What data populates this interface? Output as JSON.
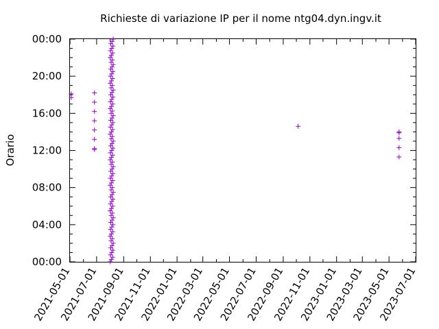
{
  "chart_data": {
    "type": "scatter",
    "title": "Richieste di variazione IP per il nome ntg04.dyn.ingv.it",
    "xlabel": "",
    "ylabel": "Orario",
    "x_ticks": [
      "2021-05-01",
      "2021-07-01",
      "2021-09-01",
      "2021-11-01",
      "2022-01-01",
      "2022-03-01",
      "2022-05-01",
      "2022-07-01",
      "2022-09-01",
      "2022-11-01",
      "2023-01-01",
      "2023-03-01",
      "2023-05-01",
      "2023-07-01"
    ],
    "y_ticks": [
      "00:00",
      "04:00",
      "08:00",
      "12:00",
      "16:00",
      "20:00",
      "00:00"
    ],
    "xlim": [
      "2021-05-01",
      "2023-07-01"
    ],
    "ylim": [
      0,
      24
    ],
    "grid": false,
    "marker_color": "#9400d3",
    "series": [
      {
        "points": [
          [
            "2021-05-04",
            17.7
          ],
          [
            "2021-05-04",
            18.1
          ],
          [
            "2021-06-26",
            12.1
          ],
          [
            "2021-06-26",
            12.2
          ],
          [
            "2021-06-26",
            13.2
          ],
          [
            "2021-06-26",
            14.2
          ],
          [
            "2021-06-26",
            15.2
          ],
          [
            "2021-06-26",
            16.2
          ],
          [
            "2021-06-26",
            17.2
          ],
          [
            "2021-06-26",
            18.2
          ],
          [
            "2022-10-05",
            14.6
          ],
          [
            "2023-05-24",
            11.3
          ],
          [
            "2023-05-24",
            12.3
          ],
          [
            "2023-05-24",
            13.3
          ],
          [
            "2023-05-24",
            13.9
          ],
          [
            "2023-05-24",
            14.0
          ]
        ],
        "dense_bands": [
          {
            "start": "2021-08-01",
            "end": "2021-08-08",
            "y_from": 0,
            "y_to": 24,
            "step_hours": 0.25
          }
        ]
      }
    ]
  }
}
